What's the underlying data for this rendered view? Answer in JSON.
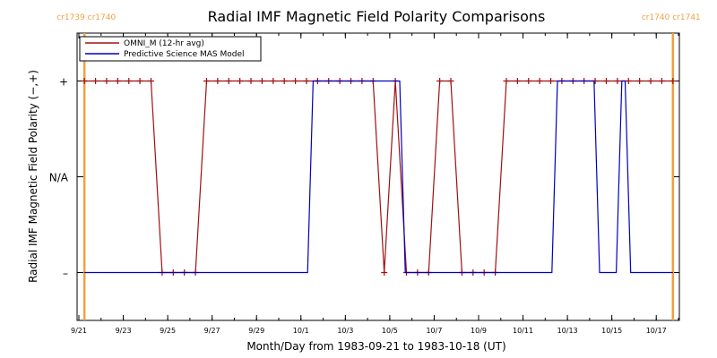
{
  "chart_data": {
    "type": "line",
    "title": "Radial IMF Magnetic Field Polarity Comparisons",
    "xlabel": "Month/Day from 1983-09-21 to 1983-10-18 (UT)",
    "ylabel": "Radial IMF Magnetic Field Polarity (−,+)",
    "x_unit": "days",
    "xlim": [
      0,
      27
    ],
    "ylim": [
      -1.5,
      1.5
    ],
    "x_ticks": [
      {
        "value": 0,
        "label": "9/21"
      },
      {
        "value": 2,
        "label": "9/23"
      },
      {
        "value": 4,
        "label": "9/25"
      },
      {
        "value": 6,
        "label": "9/27"
      },
      {
        "value": 8,
        "label": "9/29"
      },
      {
        "value": 10,
        "label": "10/1"
      },
      {
        "value": 12,
        "label": "10/3"
      },
      {
        "value": 14,
        "label": "10/5"
      },
      {
        "value": 16,
        "label": "10/7"
      },
      {
        "value": 18,
        "label": "10/9"
      },
      {
        "value": 20,
        "label": "10/11"
      },
      {
        "value": 22,
        "label": "10/13"
      },
      {
        "value": 24,
        "label": "10/15"
      },
      {
        "value": 26,
        "label": "10/17"
      }
    ],
    "y_ticks": [
      {
        "value": 1,
        "label": "+"
      },
      {
        "value": 0,
        "label": "N/A"
      },
      {
        "value": -1,
        "label": "–"
      }
    ],
    "rotations": [
      {
        "x": 0.25,
        "label": "cr1739 cr1740",
        "anchor": "right"
      },
      {
        "x": 26.75,
        "label": "cr1740 cr1741",
        "anchor": "left"
      }
    ],
    "legend": {
      "position": "top-left"
    },
    "series": [
      {
        "name": "OMNI_M (12-hr avg)",
        "color": "#a01010",
        "marker": "plus",
        "x": [
          0.25,
          0.75,
          1.25,
          1.75,
          2.25,
          2.75,
          3.25,
          3.75,
          4.25,
          4.75,
          5.25,
          5.75,
          6.25,
          6.75,
          7.25,
          7.75,
          8.25,
          8.75,
          9.25,
          9.75,
          10.25,
          10.75,
          11.25,
          11.75,
          12.25,
          12.75,
          13.25,
          13.75,
          14.25,
          14.75,
          15.25,
          15.75,
          16.25,
          16.75,
          17.25,
          17.75,
          18.25,
          18.75,
          19.25,
          19.75,
          20.25,
          20.75,
          21.25,
          21.75,
          22.25,
          22.75,
          23.25,
          23.75,
          24.25,
          24.75,
          25.25,
          25.75,
          26.25,
          26.75
        ],
        "y": [
          1,
          1,
          1,
          1,
          1,
          1,
          1,
          -1,
          -1,
          -1,
          -1,
          1,
          1,
          1,
          1,
          1,
          1,
          1,
          1,
          1,
          1,
          1,
          1,
          1,
          1,
          1,
          1,
          -1,
          1,
          -1,
          -1,
          -1,
          1,
          1,
          -1,
          -1,
          -1,
          -1,
          1,
          1,
          1,
          1,
          1,
          1,
          1,
          1,
          1,
          1,
          1,
          1,
          1,
          1,
          1,
          1
        ]
      },
      {
        "name": "Predictive Science MAS Model",
        "color": "#0000c0",
        "marker": "none",
        "x": [
          0.25,
          10.3,
          10.55,
          14.0,
          14.25,
          14.45,
          14.7,
          21.3,
          21.55,
          23.2,
          23.45,
          24.2,
          24.45,
          24.6,
          24.85,
          25.95,
          26.2,
          26.75
        ],
        "y": [
          -1,
          -1,
          1,
          1,
          1,
          1,
          -1,
          -1,
          1,
          1,
          -1,
          -1,
          1,
          1,
          -1,
          -1,
          -1,
          -1
        ]
      }
    ]
  }
}
